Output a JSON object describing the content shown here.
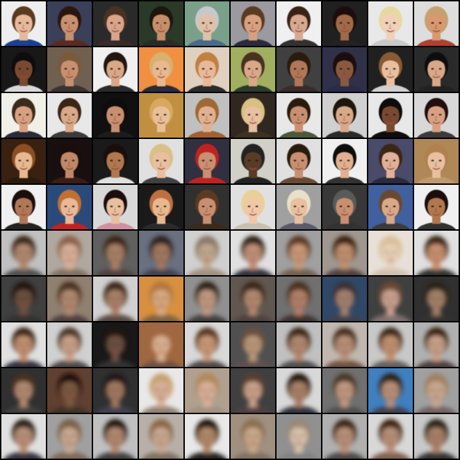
{
  "layout": {
    "rows": 10,
    "cols": 10
  },
  "rows": [
    {
      "type": "original",
      "cells": [
        {
          "bg": "#eeeeee",
          "skin": "#e8b89a",
          "hair": "#5a3a22",
          "shirt": "#1f3f8f"
        },
        {
          "bg": "#3a3f5a",
          "skin": "#c99070",
          "hair": "#2a1810",
          "shirt": "#5a2a20"
        },
        {
          "bg": "#2a2a2a",
          "skin": "#d9a48a",
          "hair": "#4a3020",
          "shirt": "#3a2a2a"
        },
        {
          "bg": "#2b3a28",
          "skin": "#c68e6b",
          "hair": "#1a1410",
          "shirt": "#2a2a2a"
        },
        {
          "bg": "#7aa08a",
          "skin": "#e0c0a8",
          "hair": "#c8c8c8",
          "shirt": "#4a6a8a"
        },
        {
          "bg": "#9a9aa0",
          "skin": "#d8a080",
          "hair": "#5a3a22",
          "shirt": "#2a2a3a"
        },
        {
          "bg": "#f0f0f0",
          "skin": "#d8a890",
          "hair": "#3a2418",
          "shirt": "#303030"
        },
        {
          "bg": "#202020",
          "skin": "#a06a48",
          "hair": "#1a1008",
          "shirt": "#202020"
        },
        {
          "bg": "#e8e8e8",
          "skin": "#f0d0b8",
          "hair": "#e8d8a0",
          "shirt": "#c8c8c8"
        },
        {
          "bg": "#dddddd",
          "skin": "#d89870",
          "hair": "#c8a070",
          "shirt": "#b04030"
        }
      ]
    },
    {
      "type": "original",
      "cells": [
        {
          "bg": "#181818",
          "skin": "#7a4a30",
          "hair": "#100a08",
          "shirt": "#d8d8d8"
        },
        {
          "bg": "#706050",
          "skin": "#c89070",
          "hair": "#7a5a3a",
          "shirt": "#3a3030"
        },
        {
          "bg": "#f0f0f0",
          "skin": "#d8a888",
          "hair": "#201410",
          "shirt": "#2a2a2a"
        },
        {
          "bg": "#f09040",
          "skin": "#e8b890",
          "hair": "#d8b070",
          "shirt": "#2a2a3a"
        },
        {
          "bg": "#e0d0c0",
          "skin": "#e8b898",
          "hair": "#c08040",
          "shirt": "#2a2a2a"
        },
        {
          "bg": "#a0b060",
          "skin": "#d8a888",
          "hair": "#4a3020",
          "shirt": "#2a3a2a"
        },
        {
          "bg": "#404040",
          "skin": "#b07858",
          "hair": "#2a1a10",
          "shirt": "#3a2a2a"
        },
        {
          "bg": "#303048",
          "skin": "#8a5a40",
          "hair": "#1a1010",
          "shirt": "#2a2a4a"
        },
        {
          "bg": "#202020",
          "skin": "#e8c0a0",
          "hair": "#8a5a30",
          "shirt": "#d0d0d0"
        },
        {
          "bg": "#2a2a2a",
          "skin": "#d8a888",
          "hair": "#101010",
          "shirt": "#202020"
        }
      ]
    },
    {
      "type": "original",
      "cells": [
        {
          "bg": "#f0f0e8",
          "skin": "#d8a080",
          "hair": "#3a2a1a",
          "shirt": "#2a2a3a"
        },
        {
          "bg": "#e8e8e8",
          "skin": "#d8a888",
          "hair": "#3a2818",
          "shirt": "#3a3a3a"
        },
        {
          "bg": "#101010",
          "skin": "#c89070",
          "hair": "#0a0808",
          "shirt": "#1a1a1a"
        },
        {
          "bg": "#c09040",
          "skin": "#e8c098",
          "hair": "#d8a860",
          "shirt": "#c09040"
        },
        {
          "bg": "#c0c0c0",
          "skin": "#e0b090",
          "hair": "#a06830",
          "shirt": "#a06030"
        },
        {
          "bg": "#302820",
          "skin": "#e8c0a0",
          "hair": "#d8c080",
          "shirt": "#3a3020"
        },
        {
          "bg": "#e8e8e8",
          "skin": "#c89070",
          "hair": "#2a1a10",
          "shirt": "#4a5a3a"
        },
        {
          "bg": "#d0d0d0",
          "skin": "#d8a888",
          "hair": "#1a1410",
          "shirt": "#2a2a2a"
        },
        {
          "bg": "#e8e8e8",
          "skin": "#7a4a30",
          "hair": "#101010",
          "shirt": "#101010"
        },
        {
          "bg": "#d8d8d8",
          "skin": "#d8a080",
          "hair": "#201010",
          "shirt": "#3a3a3a"
        }
      ]
    },
    {
      "type": "original",
      "cells": [
        {
          "bg": "#3a2010",
          "skin": "#e8b890",
          "hair": "#8a5020",
          "shirt": "#2a1a10"
        },
        {
          "bg": "#181010",
          "skin": "#c08868",
          "hair": "#1a0a08",
          "shirt": "#3a1a18"
        },
        {
          "bg": "#1a1a1a",
          "skin": "#b07850",
          "hair": "#1a1008",
          "shirt": "#e0e0e0"
        },
        {
          "bg": "#e0e0e0",
          "skin": "#e8c0a0",
          "hair": "#d8c088",
          "shirt": "#404040"
        },
        {
          "bg": "#303040",
          "skin": "#c89070",
          "hair": "#c02020",
          "shirt": "#c02020"
        },
        {
          "bg": "#d0d0c8",
          "skin": "#5a3a28",
          "hair": "#202020",
          "shirt": "#202020"
        },
        {
          "bg": "#e0e0e0",
          "skin": "#c89070",
          "hair": "#2a1a10",
          "shirt": "#6a4a30"
        },
        {
          "bg": "#f0f0f0",
          "skin": "#e0b090",
          "hair": "#101010",
          "shirt": "#303030"
        },
        {
          "bg": "#4a4a6a",
          "skin": "#e0b098",
          "hair": "#3a2818",
          "shirt": "#2a2a3a"
        },
        {
          "bg": "#b08858",
          "skin": "#e8c0a0",
          "hair": "#b08050",
          "shirt": "#c09870"
        }
      ]
    },
    {
      "type": "original",
      "cells": [
        {
          "bg": "#f0f0f0",
          "skin": "#b07858",
          "hair": "#1a1008",
          "shirt": "#202020"
        },
        {
          "bg": "#2a4a7a",
          "skin": "#e8b898",
          "hair": "#c07030",
          "shirt": "#c02020"
        },
        {
          "bg": "#d8d8d8",
          "skin": "#e8c0a0",
          "hair": "#1a1010",
          "shirt": "#d090a0"
        },
        {
          "bg": "#1a1a1a",
          "skin": "#e8b890",
          "hair": "#c07040",
          "shirt": "#2a2a2a"
        },
        {
          "bg": "#303030",
          "skin": "#c89070",
          "hair": "#5a3a20",
          "shirt": "#3a2a1a"
        },
        {
          "bg": "#e0e0e0",
          "skin": "#f0c8a8",
          "hair": "#e8d098",
          "shirt": "#c8c0b0"
        },
        {
          "bg": "#a0a0a0",
          "skin": "#e8c0a0",
          "hair": "#e8e0c8",
          "shirt": "#5a5a6a"
        },
        {
          "bg": "#383838",
          "skin": "#c89070",
          "hair": "#5a5a5a",
          "shirt": "#303030"
        },
        {
          "bg": "#4060a0",
          "skin": "#d8a888",
          "hair": "#6a4a30",
          "shirt": "#3a3a3a"
        },
        {
          "bg": "#f0f0f0",
          "skin": "#b07850",
          "hair": "#1a1008",
          "shirt": "#303030"
        }
      ]
    },
    {
      "type": "reconstruction",
      "cells": [
        {
          "bg": "#c0c0c0",
          "skin": "#b08870",
          "hair": "#3a2818",
          "shirt": "#505050"
        },
        {
          "bg": "#b0a8a0",
          "skin": "#d8b098",
          "hair": "#8a6048",
          "shirt": "#807060"
        },
        {
          "bg": "#606060",
          "skin": "#a88068",
          "hair": "#3a2818",
          "shirt": "#504040"
        },
        {
          "bg": "#6a7080",
          "skin": "#a07860",
          "hair": "#2a2020",
          "shirt": "#404050"
        },
        {
          "bg": "#d0d0d0",
          "skin": "#c0a890",
          "hair": "#8a7868",
          "shirt": "#a09080"
        },
        {
          "bg": "#e0e0e0",
          "skin": "#c09078",
          "hair": "#2a2018",
          "shirt": "#303040"
        },
        {
          "bg": "#a0a0a0",
          "skin": "#c89878",
          "hair": "#5a3820",
          "shirt": "#706050"
        },
        {
          "bg": "#a09890",
          "skin": "#c09070",
          "hair": "#3a2010",
          "shirt": "#504040"
        },
        {
          "bg": "#e8e0d8",
          "skin": "#e8d0b8",
          "hair": "#d8c098",
          "shirt": "#d0c0b0"
        },
        {
          "bg": "#e0e0e0",
          "skin": "#c89070",
          "hair": "#3a2818",
          "shirt": "#303030"
        }
      ]
    },
    {
      "type": "reconstruction",
      "cells": [
        {
          "bg": "#404040",
          "skin": "#6a5040",
          "hair": "#201810",
          "shirt": "#303030"
        },
        {
          "bg": "#908070",
          "skin": "#b08870",
          "hair": "#4a3020",
          "shirt": "#504040"
        },
        {
          "bg": "#d0d0d0",
          "skin": "#a88068",
          "hair": "#3a2818",
          "shirt": "#5a4a40"
        },
        {
          "bg": "#d89040",
          "skin": "#d8a880",
          "hair": "#b07840",
          "shirt": "#806040"
        },
        {
          "bg": "#909090",
          "skin": "#c09880",
          "hair": "#2a2018",
          "shirt": "#404040"
        },
        {
          "bg": "#605850",
          "skin": "#b08870",
          "hair": "#3a2818",
          "shirt": "#504040"
        },
        {
          "bg": "#707070",
          "skin": "#b08068",
          "hair": "#4a3020",
          "shirt": "#403030"
        },
        {
          "bg": "#304868",
          "skin": "#a08070",
          "hair": "#3a3030",
          "shirt": "#404050"
        },
        {
          "bg": "#404040",
          "skin": "#c8a090",
          "hair": "#6a4a30",
          "shirt": "#807070"
        },
        {
          "bg": "#303030",
          "skin": "#a08068",
          "hair": "#2a2018",
          "shirt": "#303030"
        }
      ]
    },
    {
      "type": "reconstruction",
      "cells": [
        {
          "bg": "#e0e0e0",
          "skin": "#c09070",
          "hair": "#3a2818",
          "shirt": "#303040"
        },
        {
          "bg": "#d0d0d0",
          "skin": "#c8a088",
          "hair": "#4a3828",
          "shirt": "#504848"
        },
        {
          "bg": "#181818",
          "skin": "#6a5040",
          "hair": "#201810",
          "shirt": "#303030"
        },
        {
          "bg": "#a06840",
          "skin": "#d8b090",
          "hair": "#a06840",
          "shirt": "#705040"
        },
        {
          "bg": "#d8d8d8",
          "skin": "#c89878",
          "hair": "#5a3820",
          "shirt": "#504848"
        },
        {
          "bg": "#505050",
          "skin": "#b89878",
          "hair": "#6a5040",
          "shirt": "#605050"
        },
        {
          "bg": "#c0c0c0",
          "skin": "#b08870",
          "hair": "#3a2818",
          "shirt": "#505050"
        },
        {
          "bg": "#c0b8b0",
          "skin": "#b89078",
          "hair": "#4a3020",
          "shirt": "#705040"
        },
        {
          "bg": "#c8c8c8",
          "skin": "#c09070",
          "hair": "#3a2818",
          "shirt": "#606060"
        },
        {
          "bg": "#b0b0b0",
          "skin": "#c8a088",
          "hair": "#3a2010",
          "shirt": "#504040"
        }
      ]
    },
    {
      "type": "reconstruction",
      "cells": [
        {
          "bg": "#303030",
          "skin": "#b08870",
          "hair": "#4a3020",
          "shirt": "#404040"
        },
        {
          "bg": "#604030",
          "skin": "#7a5840",
          "hair": "#201008",
          "shirt": "#403028"
        },
        {
          "bg": "#303030",
          "skin": "#a07860",
          "hair": "#201818",
          "shirt": "#404050"
        },
        {
          "bg": "#e8e8e8",
          "skin": "#d8b098",
          "hair": "#c8a070",
          "shirt": "#908070"
        },
        {
          "bg": "#b0a090",
          "skin": "#d8b098",
          "hair": "#b08858",
          "shirt": "#a09080"
        },
        {
          "bg": "#404040",
          "skin": "#c8a088",
          "hair": "#5a4030",
          "shirt": "#504040"
        },
        {
          "bg": "#d8d8d8",
          "skin": "#a88068",
          "hair": "#201410",
          "shirt": "#303040"
        },
        {
          "bg": "#707070",
          "skin": "#c09880",
          "hair": "#4a3828",
          "shirt": "#505050"
        },
        {
          "bg": "#4080c0",
          "skin": "#b89078",
          "hair": "#2a2018",
          "shirt": "#404050"
        },
        {
          "bg": "#a0a0a0",
          "skin": "#c8a890",
          "hair": "#a08060",
          "shirt": "#706060"
        }
      ]
    },
    {
      "type": "reconstruction",
      "cells": [
        {
          "bg": "#e0e0e0",
          "skin": "#b89078",
          "hair": "#2a2018",
          "shirt": "#303040"
        },
        {
          "bg": "#a0a0a0",
          "skin": "#c8a890",
          "hair": "#7a6048",
          "shirt": "#806858"
        },
        {
          "bg": "#c0c0c0",
          "skin": "#b08870",
          "hair": "#201410",
          "shirt": "#404040"
        },
        {
          "bg": "#b8b0a8",
          "skin": "#c8a890",
          "hair": "#8a6848",
          "shirt": "#807060"
        },
        {
          "bg": "#e8e8e8",
          "skin": "#b08868",
          "hair": "#201810",
          "shirt": "#202020"
        },
        {
          "bg": "#a09080",
          "skin": "#c8a888",
          "hair": "#8a7050",
          "shirt": "#807060"
        },
        {
          "bg": "#909090",
          "skin": "#d8c0a8",
          "hair": "#9a8878",
          "shirt": "#808080"
        },
        {
          "bg": "#b0b0b0",
          "skin": "#b89078",
          "hair": "#3a2818",
          "shirt": "#504848"
        },
        {
          "bg": "#d8d8d8",
          "skin": "#b89078",
          "hair": "#3a2010",
          "shirt": "#806050"
        },
        {
          "bg": "#c8c8c8",
          "skin": "#a88068",
          "hair": "#2a2018",
          "shirt": "#303030"
        }
      ]
    }
  ]
}
